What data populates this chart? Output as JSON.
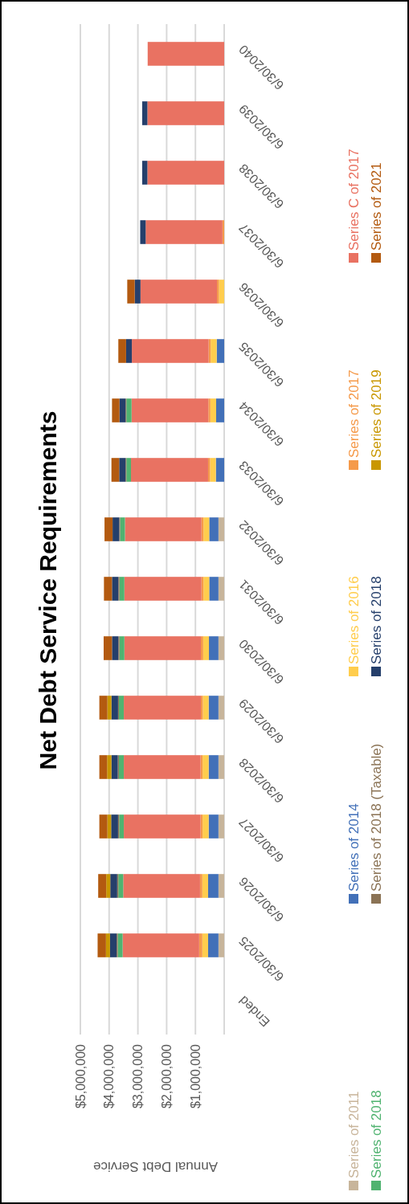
{
  "chart_data": {
    "type": "bar",
    "stacked": true,
    "orientation": "horizontal",
    "title": "Net Debt Service Requirements",
    "xlabel": "Annual Debt Service",
    "categories": [
      "6/30/2040",
      "6/30/2039",
      "6/30/2038",
      "6/30/2037",
      "6/30/2036",
      "6/30/2035",
      "6/30/2034",
      "6/30/2033",
      "6/30/2032",
      "6/30/2031",
      "6/30/2030",
      "6/30/2029",
      "6/30/2028",
      "6/30/2027",
      "6/30/2026",
      "6/30/2025",
      "Ended"
    ],
    "series": [
      {
        "name": "Series of 2011",
        "color": "#c8b59b",
        "values": [
          null,
          null,
          null,
          null,
          null,
          null,
          null,
          null,
          200000,
          200000,
          200000,
          200000,
          200000,
          200000,
          200000,
          200000,
          null
        ]
      },
      {
        "name": "Series of 2014",
        "color": "#4270b8",
        "values": [
          null,
          null,
          null,
          null,
          null,
          260000,
          280000,
          290000,
          320000,
          320000,
          330000,
          340000,
          340000,
          340000,
          360000,
          360000,
          null
        ]
      },
      {
        "name": "Series of 2016",
        "color": "#ffcd4d",
        "values": [
          null,
          null,
          null,
          null,
          180000,
          210000,
          200000,
          200000,
          200000,
          200000,
          200000,
          200000,
          210000,
          210000,
          200000,
          200000,
          null
        ]
      },
      {
        "name": "Series of 2017",
        "color": "#f59a4a",
        "values": [
          null,
          null,
          null,
          60000,
          70000,
          70000,
          70000,
          70000,
          70000,
          70000,
          80000,
          70000,
          70000,
          70000,
          80000,
          110000,
          null
        ]
      },
      {
        "name": "Series C of 2017",
        "color": "#e97262",
        "values": [
          2660000,
          2670000,
          2670000,
          2670000,
          2660000,
          2670000,
          2670000,
          2680000,
          2660000,
          2680000,
          2660000,
          2680000,
          2670000,
          2670000,
          2670000,
          2660000,
          null
        ]
      },
      {
        "name": "Series of 2018",
        "color": "#50b370",
        "values": [
          null,
          null,
          null,
          null,
          null,
          null,
          180000,
          160000,
          170000,
          170000,
          170000,
          170000,
          170000,
          160000,
          170000,
          170000,
          null
        ]
      },
      {
        "name": "Series of 2018 (Taxable)",
        "color": "#8b7355",
        "values": [
          null,
          null,
          null,
          null,
          null,
          null,
          30000,
          30000,
          30000,
          40000,
          40000,
          30000,
          40000,
          40000,
          40000,
          40000,
          null
        ]
      },
      {
        "name": "Series of 2018",
        "color": "#253f6b",
        "values": [
          null,
          180000,
          180000,
          190000,
          200000,
          200000,
          210000,
          220000,
          230000,
          220000,
          220000,
          230000,
          220000,
          240000,
          240000,
          230000,
          null
        ]
      },
      {
        "name": "Series of 2019",
        "color": "#c99700",
        "values": [
          null,
          null,
          null,
          null,
          null,
          null,
          null,
          null,
          null,
          null,
          null,
          140000,
          150000,
          130000,
          140000,
          140000,
          null
        ]
      },
      {
        "name": "Series of 2021",
        "color": "#b35a10",
        "values": [
          null,
          null,
          null,
          null,
          260000,
          270000,
          260000,
          270000,
          280000,
          280000,
          290000,
          280000,
          270000,
          280000,
          280000,
          290000,
          null
        ]
      }
    ],
    "xlim": [
      5000000,
      0
    ],
    "xticks": [
      {
        "value": 0,
        "label": null
      },
      {
        "value": 1000000,
        "label": "$1,000,000"
      },
      {
        "value": 2000000,
        "label": "$2,000,000"
      },
      {
        "value": 3000000,
        "label": "$3,000,000"
      },
      {
        "value": 4000000,
        "label": "$4,000,000"
      },
      {
        "value": 5000000,
        "label": "$5,000,000"
      }
    ],
    "grid": "x",
    "legend": "right"
  }
}
